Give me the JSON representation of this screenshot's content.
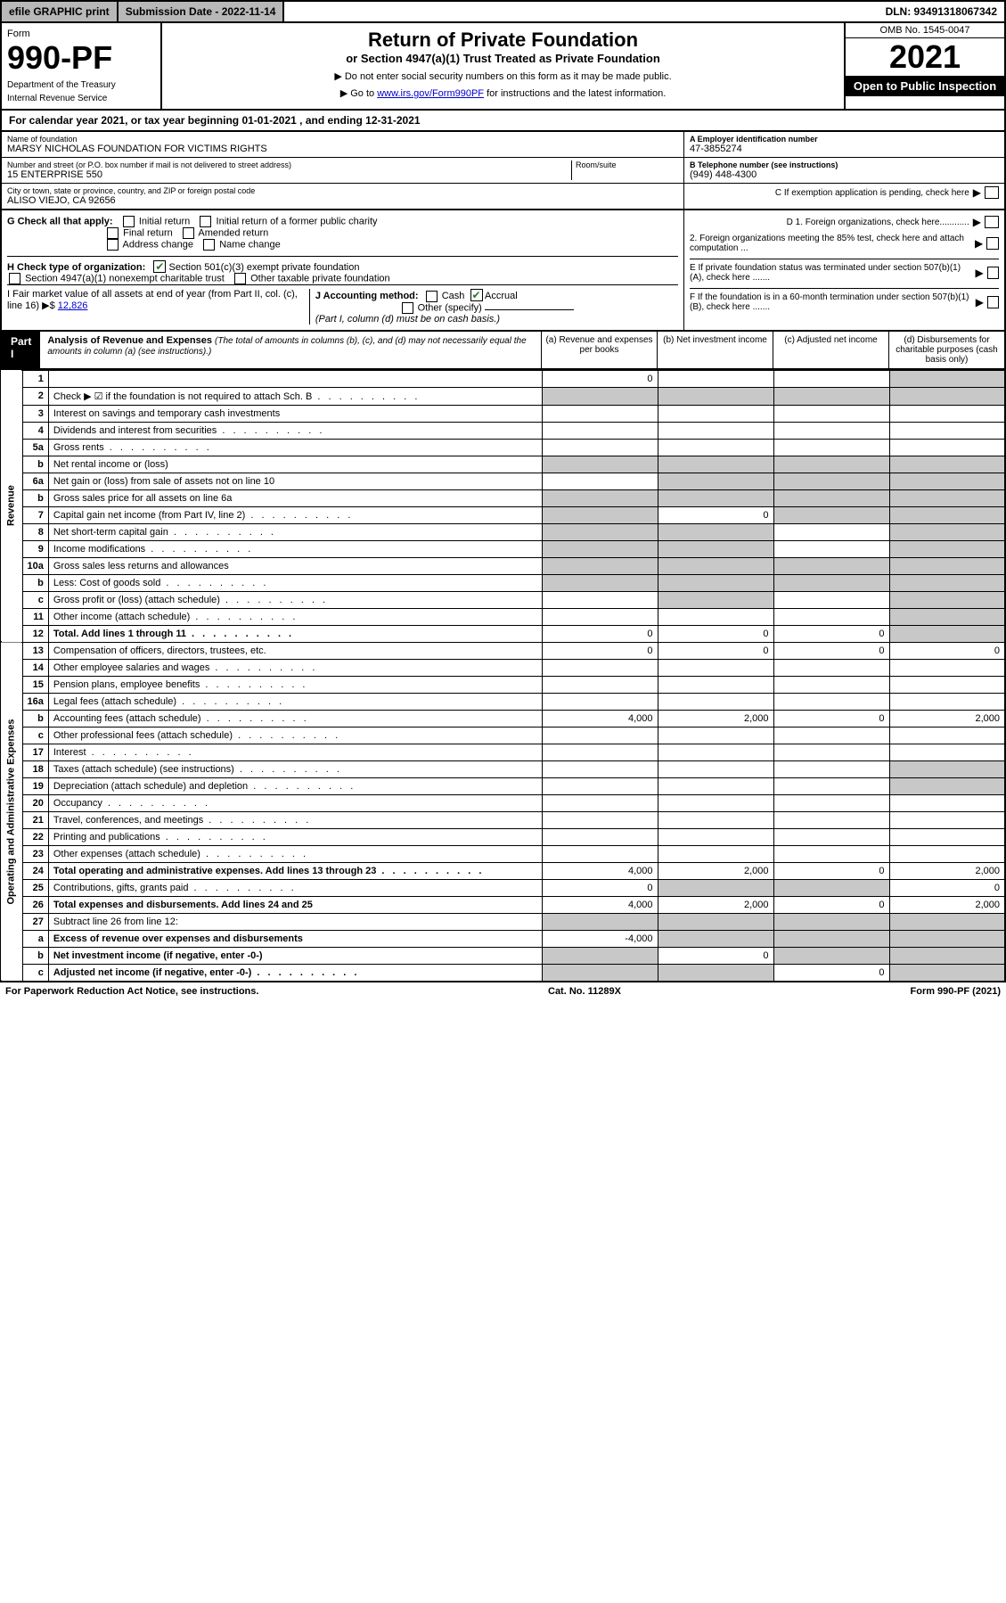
{
  "topbar": {
    "efile": "efile GRAPHIC print",
    "subdate_label": "Submission Date - 2022-11-14",
    "dln": "DLN: 93491318067342"
  },
  "header": {
    "form_label": "Form",
    "form_number": "990-PF",
    "dept1": "Department of the Treasury",
    "dept2": "Internal Revenue Service",
    "title": "Return of Private Foundation",
    "subtitle": "or Section 4947(a)(1) Trust Treated as Private Foundation",
    "instr1": "▶ Do not enter social security numbers on this form as it may be made public.",
    "instr2_pre": "▶ Go to ",
    "instr2_link": "www.irs.gov/Form990PF",
    "instr2_post": " for instructions and the latest information.",
    "omb": "OMB No. 1545-0047",
    "year": "2021",
    "open": "Open to Public Inspection"
  },
  "cal_year": "For calendar year 2021, or tax year beginning 01-01-2021            , and ending 12-31-2021",
  "foundation": {
    "name_label": "Name of foundation",
    "name": "MARSY NICHOLAS FOUNDATION FOR VICTIMS RIGHTS",
    "addr_label": "Number and street (or P.O. box number if mail is not delivered to street address)",
    "addr": "15 ENTERPRISE 550",
    "room_label": "Room/suite",
    "city_label": "City or town, state or province, country, and ZIP or foreign postal code",
    "city": "ALISO VIEJO, CA  92656",
    "ein_label": "A Employer identification number",
    "ein": "47-3855274",
    "phone_label": "B Telephone number (see instructions)",
    "phone": "(949) 448-4300",
    "c_label": "C If exemption application is pending, check here",
    "d1": "D 1. Foreign organizations, check here............",
    "d2": "2. Foreign organizations meeting the 85% test, check here and attach computation ...",
    "e": "E  If private foundation status was terminated under section 507(b)(1)(A), check here .......",
    "f": "F  If the foundation is in a 60-month termination under section 507(b)(1)(B), check here .......",
    "g_label": "G Check all that apply:",
    "g_opts": [
      "Initial return",
      "Initial return of a former public charity",
      "Final return",
      "Amended return",
      "Address change",
      "Name change"
    ],
    "h_label": "H Check type of organization:",
    "h_opt1": "Section 501(c)(3) exempt private foundation",
    "h_opt2": "Section 4947(a)(1) nonexempt charitable trust",
    "h_opt3": "Other taxable private foundation",
    "i_label": "I Fair market value of all assets at end of year (from Part II, col. (c), line 16)",
    "i_val": "12,826",
    "j_label": "J Accounting method:",
    "j_cash": "Cash",
    "j_accrual": "Accrual",
    "j_other": "Other (specify)",
    "j_note": "(Part I, column (d) must be on cash basis.)"
  },
  "part1": {
    "label": "Part I",
    "title": "Analysis of Revenue and Expenses",
    "note": "(The total of amounts in columns (b), (c), and (d) may not necessarily equal the amounts in column (a) (see instructions).)",
    "col_a": "(a)  Revenue and expenses per books",
    "col_b": "(b)  Net investment income",
    "col_c": "(c)  Adjusted net income",
    "col_d": "(d)  Disbursements for charitable purposes (cash basis only)"
  },
  "sections": {
    "revenue": "Revenue",
    "operating": "Operating and Administrative Expenses"
  },
  "rows": [
    {
      "n": "1",
      "d": "",
      "a": "0",
      "b": "",
      "c": "",
      "shade_d": true
    },
    {
      "n": "2",
      "d": "Check ▶ ☑ if the foundation is not required to attach Sch. B",
      "dots": true,
      "shade_all": true
    },
    {
      "n": "3",
      "d": "Interest on savings and temporary cash investments"
    },
    {
      "n": "4",
      "d": "Dividends and interest from securities",
      "dots": true
    },
    {
      "n": "5a",
      "d": "Gross rents",
      "dots": true
    },
    {
      "n": "b",
      "d": "Net rental income or (loss)",
      "shade_all": true
    },
    {
      "n": "6a",
      "d": "Net gain or (loss) from sale of assets not on line 10",
      "shade_bcd": true
    },
    {
      "n": "b",
      "d": "Gross sales price for all assets on line 6a",
      "shade_all": true
    },
    {
      "n": "7",
      "d": "Capital gain net income (from Part IV, line 2)",
      "dots": true,
      "b": "0",
      "shade_a": true,
      "shade_cd": true
    },
    {
      "n": "8",
      "d": "Net short-term capital gain",
      "dots": true,
      "shade_ab": true,
      "shade_d": true
    },
    {
      "n": "9",
      "d": "Income modifications",
      "dots": true,
      "shade_ab": true,
      "shade_d": true
    },
    {
      "n": "10a",
      "d": "Gross sales less returns and allowances",
      "shade_all": true
    },
    {
      "n": "b",
      "d": "Less: Cost of goods sold",
      "dots": true,
      "shade_all": true
    },
    {
      "n": "c",
      "d": "Gross profit or (loss) (attach schedule)",
      "dots": true,
      "shade_b": true,
      "shade_d": true
    },
    {
      "n": "11",
      "d": "Other income (attach schedule)",
      "dots": true,
      "shade_d": true
    },
    {
      "n": "12",
      "d": "Total. Add lines 1 through 11",
      "dots": true,
      "bold": true,
      "a": "0",
      "b": "0",
      "c": "0",
      "shade_d": true
    },
    {
      "n": "13",
      "d": "Compensation of officers, directors, trustees, etc.",
      "a": "0",
      "b": "0",
      "c": "0",
      "dd": "0"
    },
    {
      "n": "14",
      "d": "Other employee salaries and wages",
      "dots": true
    },
    {
      "n": "15",
      "d": "Pension plans, employee benefits",
      "dots": true
    },
    {
      "n": "16a",
      "d": "Legal fees (attach schedule)",
      "dots": true
    },
    {
      "n": "b",
      "d": "Accounting fees (attach schedule)",
      "dots": true,
      "a": "4,000",
      "b": "2,000",
      "c": "0",
      "dd": "2,000"
    },
    {
      "n": "c",
      "d": "Other professional fees (attach schedule)",
      "dots": true
    },
    {
      "n": "17",
      "d": "Interest",
      "dots": true
    },
    {
      "n": "18",
      "d": "Taxes (attach schedule) (see instructions)",
      "dots": true,
      "shade_d": true
    },
    {
      "n": "19",
      "d": "Depreciation (attach schedule) and depletion",
      "dots": true,
      "shade_d": true
    },
    {
      "n": "20",
      "d": "Occupancy",
      "dots": true
    },
    {
      "n": "21",
      "d": "Travel, conferences, and meetings",
      "dots": true
    },
    {
      "n": "22",
      "d": "Printing and publications",
      "dots": true
    },
    {
      "n": "23",
      "d": "Other expenses (attach schedule)",
      "dots": true
    },
    {
      "n": "24",
      "d": "Total operating and administrative expenses. Add lines 13 through 23",
      "dots": true,
      "bold": true,
      "a": "4,000",
      "b": "2,000",
      "c": "0",
      "dd": "2,000"
    },
    {
      "n": "25",
      "d": "Contributions, gifts, grants paid",
      "dots": true,
      "a": "0",
      "shade_bc": true,
      "dd": "0"
    },
    {
      "n": "26",
      "d": "Total expenses and disbursements. Add lines 24 and 25",
      "bold": true,
      "a": "4,000",
      "b": "2,000",
      "c": "0",
      "dd": "2,000"
    },
    {
      "n": "27",
      "d": "Subtract line 26 from line 12:",
      "shade_all": true
    },
    {
      "n": "a",
      "d": "Excess of revenue over expenses and disbursements",
      "bold": true,
      "a": "-4,000",
      "shade_bcd": true
    },
    {
      "n": "b",
      "d": "Net investment income (if negative, enter -0-)",
      "bold": true,
      "b": "0",
      "shade_a": true,
      "shade_cd": true
    },
    {
      "n": "c",
      "d": "Adjusted net income (if negative, enter -0-)",
      "dots": true,
      "bold": true,
      "c": "0",
      "shade_ab": true,
      "shade_d": true
    }
  ],
  "footer": {
    "left": "For Paperwork Reduction Act Notice, see instructions.",
    "mid": "Cat. No. 11289X",
    "right": "Form 990-PF (2021)"
  }
}
